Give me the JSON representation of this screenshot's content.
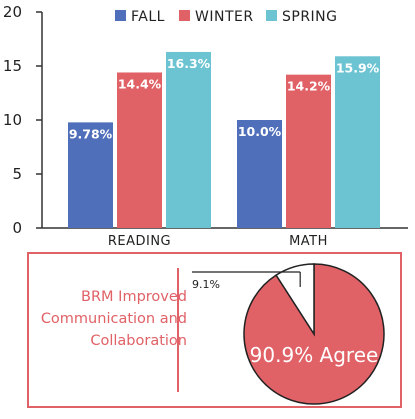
{
  "chart_data": [
    {
      "type": "bar",
      "categories": [
        "READING",
        "MATH"
      ],
      "series": [
        {
          "name": "FALL",
          "values": [
            9.78,
            10.0
          ],
          "labels": [
            "9.78%",
            "10.0%"
          ],
          "color": "#4f6fba"
        },
        {
          "name": "WINTER",
          "values": [
            14.4,
            14.2
          ],
          "labels": [
            "14.4%",
            "14.2%"
          ],
          "color": "#e06166"
        },
        {
          "name": "SPRING",
          "values": [
            16.3,
            15.9
          ],
          "labels": [
            "16.3%",
            "15.9%"
          ],
          "color": "#6cc4d2"
        }
      ],
      "ylim": [
        0,
        20
      ],
      "yticks": [
        "0",
        "5",
        "10",
        "15",
        "20"
      ],
      "legend_position": "top",
      "grid": false
    },
    {
      "type": "pie",
      "slices": [
        {
          "label": "90.9% Agree",
          "value": 90.9,
          "color": "#e06166"
        },
        {
          "label": "9.1%",
          "value": 9.1,
          "color": "#ffffff"
        }
      ],
      "statement": "BRM Improved Communication and Collaboration"
    }
  ]
}
